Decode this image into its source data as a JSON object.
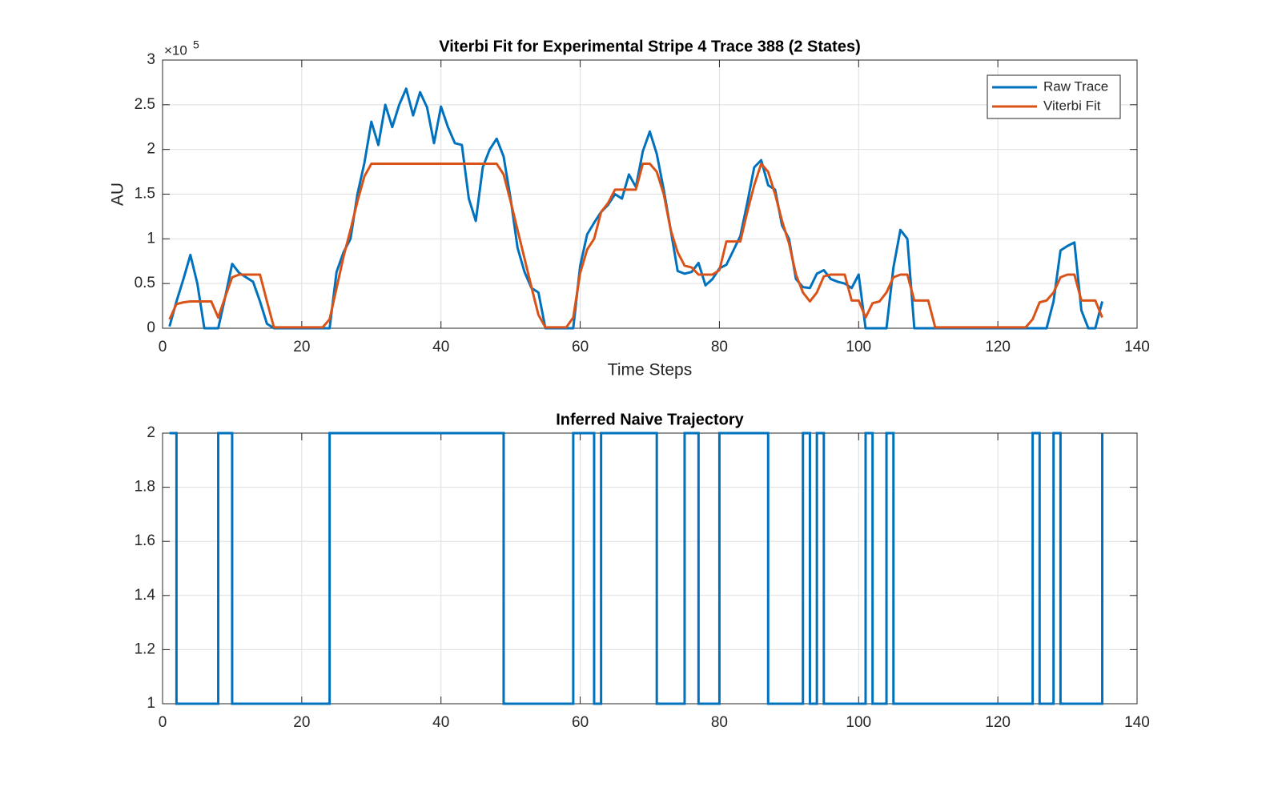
{
  "chart_data": [
    {
      "type": "line",
      "title": "Viterbi Fit for Experimental Stripe 4 Trace 388 (2 States)",
      "x_label": "Time Steps",
      "y_label": "AU",
      "y_multiplier_label": "×10",
      "y_multiplier_exponent": "5",
      "x": [
        1,
        2,
        3,
        4,
        5,
        6,
        7,
        8,
        9,
        10,
        11,
        12,
        13,
        14,
        15,
        16,
        17,
        18,
        19,
        20,
        21,
        22,
        23,
        24,
        25,
        26,
        27,
        28,
        29,
        30,
        31,
        32,
        33,
        34,
        35,
        36,
        37,
        38,
        39,
        40,
        41,
        42,
        43,
        44,
        45,
        46,
        47,
        48,
        49,
        50,
        51,
        52,
        53,
        54,
        55,
        56,
        57,
        58,
        59,
        60,
        61,
        62,
        63,
        64,
        65,
        66,
        67,
        68,
        69,
        70,
        71,
        72,
        73,
        74,
        75,
        76,
        77,
        78,
        79,
        80,
        81,
        82,
        83,
        84,
        85,
        86,
        87,
        88,
        89,
        90,
        91,
        92,
        93,
        94,
        95,
        96,
        97,
        98,
        99,
        100,
        101,
        102,
        103,
        104,
        105,
        106,
        107,
        108,
        109,
        110,
        111,
        112,
        113,
        114,
        115,
        116,
        117,
        118,
        119,
        120,
        121,
        122,
        123,
        124,
        125,
        126,
        127,
        128,
        129,
        130,
        131,
        132,
        133,
        134,
        135
      ],
      "series": [
        {
          "name": "Raw Trace",
          "color": "#0072BD",
          "values": [
            0.02,
            0.3,
            0.55,
            0.82,
            0.5,
            0,
            0,
            0,
            0.35,
            0.72,
            0.62,
            0.57,
            0.52,
            0.3,
            0.05,
            0,
            0,
            0,
            0,
            0,
            0,
            0,
            0,
            0,
            0.63,
            0.85,
            1.0,
            1.5,
            1.85,
            2.31,
            2.05,
            2.5,
            2.25,
            2.5,
            2.68,
            2.38,
            2.64,
            2.47,
            2.07,
            2.48,
            2.25,
            2.07,
            2.05,
            1.45,
            1.2,
            1.8,
            2.0,
            2.12,
            1.92,
            1.45,
            0.9,
            0.63,
            0.45,
            0.4,
            0,
            0,
            0,
            0,
            0,
            0.7,
            1.05,
            1.18,
            1.3,
            1.38,
            1.5,
            1.45,
            1.72,
            1.58,
            1.98,
            2.2,
            1.95,
            1.55,
            1.1,
            0.64,
            0.61,
            0.63,
            0.73,
            0.48,
            0.55,
            0.67,
            0.71,
            0.87,
            1.03,
            1.4,
            1.8,
            1.88,
            1.6,
            1.55,
            1.15,
            1.0,
            0.55,
            0.46,
            0.45,
            0.61,
            0.65,
            0.55,
            0.52,
            0.5,
            0.45,
            0.6,
            0,
            0,
            0,
            0,
            0.68,
            1.1,
            1.0,
            0,
            0,
            0,
            0,
            0,
            0,
            0,
            0,
            0,
            0,
            0,
            0,
            0,
            0,
            0,
            0,
            0,
            0,
            0,
            0,
            0.3,
            0.87,
            0.92,
            0.96,
            0.2,
            0,
            0,
            0.3
          ]
        },
        {
          "name": "Viterbi Fit",
          "color": "#D95319",
          "values": [
            0.1,
            0.27,
            0.29,
            0.3,
            0.3,
            0.3,
            0.3,
            0.12,
            0.35,
            0.57,
            0.6,
            0.6,
            0.6,
            0.6,
            0.3,
            0.01,
            0.01,
            0.01,
            0.01,
            0.01,
            0.01,
            0.01,
            0.01,
            0.1,
            0.45,
            0.8,
            1.1,
            1.42,
            1.7,
            1.84,
            1.84,
            1.84,
            1.84,
            1.84,
            1.84,
            1.84,
            1.84,
            1.84,
            1.84,
            1.84,
            1.84,
            1.84,
            1.84,
            1.84,
            1.84,
            1.84,
            1.84,
            1.84,
            1.72,
            1.42,
            1.1,
            0.78,
            0.46,
            0.15,
            0.01,
            0.01,
            0.01,
            0.01,
            0.12,
            0.62,
            0.88,
            1.0,
            1.3,
            1.4,
            1.55,
            1.55,
            1.55,
            1.55,
            1.84,
            1.84,
            1.75,
            1.5,
            1.1,
            0.85,
            0.7,
            0.68,
            0.6,
            0.6,
            0.6,
            0.65,
            0.97,
            0.97,
            0.97,
            1.3,
            1.6,
            1.84,
            1.75,
            1.5,
            1.2,
            0.95,
            0.6,
            0.4,
            0.3,
            0.4,
            0.58,
            0.6,
            0.6,
            0.6,
            0.31,
            0.31,
            0.12,
            0.28,
            0.3,
            0.4,
            0.57,
            0.6,
            0.6,
            0.31,
            0.31,
            0.31,
            0.01,
            0.01,
            0.01,
            0.01,
            0.01,
            0.01,
            0.01,
            0.01,
            0.01,
            0.01,
            0.01,
            0.01,
            0.01,
            0.01,
            0.1,
            0.29,
            0.31,
            0.4,
            0.57,
            0.6,
            0.6,
            0.31,
            0.31,
            0.31,
            0.12
          ]
        }
      ],
      "xlim": [
        0,
        140
      ],
      "xticks": [
        0,
        20,
        40,
        60,
        80,
        100,
        120,
        140
      ],
      "ylim": [
        0,
        3
      ],
      "yticks": [
        0,
        0.5,
        1,
        1.5,
        2,
        2.5,
        3
      ],
      "grid": true,
      "legend": "northeast"
    },
    {
      "type": "stairs",
      "title": "Inferred Naive Trajectory",
      "x": [
        1,
        2,
        3,
        4,
        5,
        6,
        7,
        8,
        9,
        10,
        11,
        12,
        13,
        14,
        15,
        16,
        17,
        18,
        19,
        20,
        21,
        22,
        23,
        24,
        25,
        26,
        27,
        28,
        29,
        30,
        31,
        32,
        33,
        34,
        35,
        36,
        37,
        38,
        39,
        40,
        41,
        42,
        43,
        44,
        45,
        46,
        47,
        48,
        49,
        50,
        51,
        52,
        53,
        54,
        55,
        56,
        57,
        58,
        59,
        60,
        61,
        62,
        63,
        64,
        65,
        66,
        67,
        68,
        69,
        70,
        71,
        72,
        73,
        74,
        75,
        76,
        77,
        78,
        79,
        80,
        81,
        82,
        83,
        84,
        85,
        86,
        87,
        88,
        89,
        90,
        91,
        92,
        93,
        94,
        95,
        96,
        97,
        98,
        99,
        100,
        101,
        102,
        103,
        104,
        105,
        106,
        107,
        108,
        109,
        110,
        111,
        112,
        113,
        114,
        115,
        116,
        117,
        118,
        119,
        120,
        121,
        122,
        123,
        124,
        125,
        126,
        127,
        128,
        129,
        130,
        131,
        132,
        133,
        134,
        135
      ],
      "color": "#0072BD",
      "values": [
        2,
        1,
        1,
        1,
        1,
        1,
        1,
        2,
        2,
        1,
        1,
        1,
        1,
        1,
        1,
        1,
        1,
        1,
        1,
        1,
        1,
        1,
        1,
        2,
        2,
        2,
        2,
        2,
        2,
        2,
        2,
        2,
        2,
        2,
        2,
        2,
        2,
        2,
        2,
        2,
        2,
        2,
        2,
        2,
        2,
        2,
        2,
        2,
        1,
        1,
        1,
        1,
        1,
        1,
        1,
        1,
        1,
        1,
        2,
        2,
        2,
        1,
        2,
        2,
        2,
        2,
        2,
        2,
        2,
        2,
        1,
        1,
        1,
        1,
        2,
        2,
        1,
        1,
        1,
        2,
        2,
        2,
        2,
        2,
        2,
        2,
        1,
        1,
        1,
        1,
        1,
        2,
        1,
        2,
        1,
        1,
        1,
        1,
        1,
        1,
        2,
        1,
        1,
        2,
        1,
        1,
        1,
        1,
        1,
        1,
        1,
        1,
        1,
        1,
        1,
        1,
        1,
        1,
        1,
        1,
        1,
        1,
        1,
        1,
        2,
        1,
        1,
        2,
        1,
        1,
        1,
        1,
        1,
        1,
        2
      ],
      "xlim": [
        0,
        140
      ],
      "xticks": [
        0,
        20,
        40,
        60,
        80,
        100,
        120,
        140
      ],
      "ylim": [
        1,
        2
      ],
      "yticks": [
        1,
        1.2,
        1.4,
        1.6,
        1.8,
        2
      ],
      "grid": true
    }
  ]
}
